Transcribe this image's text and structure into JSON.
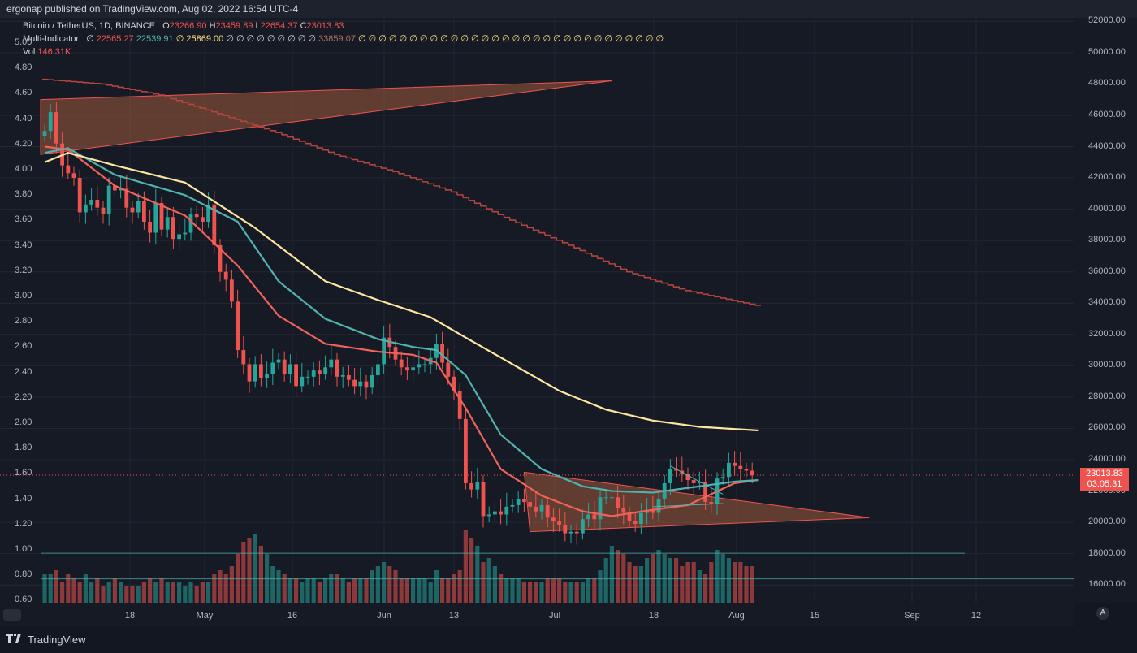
{
  "header": {
    "published_text": "ergonap published on TradingView.com, Aug 02, 2022 16:54 UTC-4"
  },
  "legend": {
    "symbol": "Bitcoin / TetherUS, 1D, BINANCE",
    "o_label": "O",
    "o_value": "23266.90",
    "h_label": "H",
    "h_value": "23459.89",
    "l_label": "L",
    "l_value": "22654.37",
    "c_label": "C",
    "c_value": "23013.83",
    "indicator_name": "Multi-Indicator",
    "null_mark": "∅",
    "ind_v1": "22565.27",
    "ind_v2": "22539.91",
    "ind_v3": "25869.00",
    "ind_v4": "33859.07",
    "null_tail": "∅ ∅ ∅ ∅ ∅ ∅ ∅ ∅ ∅ ∅ ∅ ∅ ∅ ∅ ∅ ∅ ∅ ∅ ∅ ∅ ∅ ∅ ∅ ∅ ∅ ∅ ∅ ∅ ∅ ∅",
    "vol_label": "Vol",
    "vol_value": "146.31K"
  },
  "price_box": {
    "price": "23013.83",
    "countdown": "03:05:31"
  },
  "footer": {
    "brand": "TradingView",
    "auto_button": "A"
  },
  "colors": {
    "background": "#161a25",
    "up": "#26a69a",
    "down": "#ef5350",
    "ema_teal": "#4fb3b0",
    "ema_red": "#f0635a",
    "sma_yellow": "#fde6a0",
    "sma_red_dark": "#b4443e"
  },
  "chart_data": {
    "type": "candlestick",
    "symbol": "Bitcoin / TetherUS",
    "timeframe": "1D",
    "exchange": "BINANCE",
    "right_axis_ticks": [
      "52000.00",
      "50000.00",
      "48000.00",
      "46000.00",
      "44000.00",
      "42000.00",
      "40000.00",
      "38000.00",
      "36000.00",
      "34000.00",
      "32000.00",
      "30000.00",
      "28000.00",
      "26000.00",
      "24000.00",
      "22000.00",
      "20000.00",
      "18000.00",
      "16000.00"
    ],
    "left_axis_ticks": [
      "5.00",
      "4.80",
      "4.60",
      "4.40",
      "4.20",
      "4.00",
      "3.80",
      "3.60",
      "3.40",
      "3.20",
      "3.00",
      "2.80",
      "2.60",
      "2.40",
      "2.20",
      "2.00",
      "1.80",
      "1.60",
      "1.40",
      "1.20",
      "1.00",
      "0.80",
      "0.60"
    ],
    "x_ticks": [
      "18",
      "May",
      "16",
      "Jun",
      "13",
      "Jul",
      "18",
      "Aug",
      "15",
      "Sep",
      "12"
    ],
    "ylim": [
      15000,
      53000
    ],
    "closes": [
      45000,
      46200,
      44200,
      42800,
      42300,
      42000,
      39800,
      40300,
      40600,
      40100,
      39700,
      41500,
      41200,
      41300,
      40100,
      39800,
      40500,
      39200,
      38500,
      40400,
      38700,
      39500,
      38100,
      38400,
      38500,
      39700,
      39500,
      39200,
      40300,
      37700,
      36000,
      35500,
      34100,
      31000,
      30100,
      29000,
      30100,
      29200,
      29500,
      30200,
      30400,
      29500,
      30100,
      28700,
      29300,
      29300,
      29700,
      29500,
      29900,
      30400,
      29300,
      29400,
      29100,
      28700,
      29000,
      28600,
      29400,
      30100,
      31800,
      31200,
      30400,
      29900,
      29700,
      29900,
      30100,
      30100,
      30500,
      31400,
      30200,
      29300,
      28400,
      26600,
      22500,
      22100,
      22600,
      20400,
      20500,
      20700,
      20500,
      21000,
      21100,
      21500,
      21300,
      21000,
      20700,
      21100,
      20300,
      20100,
      19800,
      19300,
      19400,
      19300,
      20200,
      20500,
      20200,
      21600,
      21600,
      21600,
      20900,
      20600,
      20100,
      19900,
      20600,
      20800,
      20600,
      21500,
      22500,
      23400,
      23300,
      23100,
      22700,
      22500,
      22600,
      21300,
      21200,
      22800,
      22900,
      23800,
      23600,
      23400,
      23300,
      23000
    ],
    "volumes": [
      0.07,
      0.07,
      0.08,
      0.05,
      0.07,
      0.06,
      0.05,
      0.07,
      0.05,
      0.06,
      0.04,
      0.05,
      0.06,
      0.05,
      0.04,
      0.04,
      0.04,
      0.05,
      0.06,
      0.05,
      0.06,
      0.05,
      0.05,
      0.05,
      0.04,
      0.05,
      0.04,
      0.05,
      0.05,
      0.07,
      0.08,
      0.07,
      0.09,
      0.12,
      0.15,
      0.16,
      0.17,
      0.14,
      0.12,
      0.09,
      0.08,
      0.07,
      0.06,
      0.06,
      0.05,
      0.06,
      0.06,
      0.05,
      0.06,
      0.07,
      0.07,
      0.06,
      0.05,
      0.06,
      0.06,
      0.06,
      0.08,
      0.09,
      0.1,
      0.09,
      0.08,
      0.06,
      0.06,
      0.06,
      0.06,
      0.06,
      0.05,
      0.08,
      0.06,
      0.06,
      0.07,
      0.08,
      0.18,
      0.16,
      0.14,
      0.1,
      0.11,
      0.09,
      0.07,
      0.06,
      0.06,
      0.06,
      0.05,
      0.05,
      0.05,
      0.05,
      0.06,
      0.06,
      0.06,
      0.05,
      0.05,
      0.05,
      0.05,
      0.06,
      0.06,
      0.08,
      0.11,
      0.14,
      0.13,
      0.12,
      0.1,
      0.09,
      0.09,
      0.11,
      0.12,
      0.13,
      0.12,
      0.11,
      0.11,
      0.09,
      0.1,
      0.1,
      0.08,
      0.07,
      0.1,
      0.13,
      0.12,
      0.11,
      0.1,
      0.1,
      0.09,
      0.09,
      0.08
    ],
    "ma_lines": [
      {
        "name": "EMA red",
        "color": "#f0635a",
        "points": [
          [
            0,
            44000
          ],
          [
            4,
            43800
          ],
          [
            12,
            41500
          ],
          [
            24,
            39600
          ],
          [
            33,
            36400
          ],
          [
            40,
            33200
          ],
          [
            48,
            31400
          ],
          [
            57,
            30900
          ],
          [
            63,
            30700
          ],
          [
            67,
            30200
          ],
          [
            72,
            27300
          ],
          [
            78,
            23400
          ],
          [
            85,
            21700
          ],
          [
            92,
            20700
          ],
          [
            97,
            20400
          ],
          [
            104,
            20800
          ],
          [
            110,
            21100
          ],
          [
            118,
            22500
          ],
          [
            122,
            22700
          ]
        ]
      },
      {
        "name": "EMA teal",
        "color": "#4fb3b0",
        "points": [
          [
            0,
            43600
          ],
          [
            4,
            43900
          ],
          [
            12,
            42200
          ],
          [
            24,
            40900
          ],
          [
            33,
            39200
          ],
          [
            40,
            35400
          ],
          [
            48,
            33000
          ],
          [
            57,
            31700
          ],
          [
            63,
            31200
          ],
          [
            67,
            31000
          ],
          [
            72,
            29400
          ],
          [
            78,
            25600
          ],
          [
            85,
            23400
          ],
          [
            92,
            22300
          ],
          [
            97,
            22000
          ],
          [
            104,
            21900
          ],
          [
            112,
            22300
          ],
          [
            118,
            22600
          ],
          [
            122,
            22700
          ]
        ]
      },
      {
        "name": "SMA yellow",
        "color": "#fde6a0",
        "points": [
          [
            0,
            43000
          ],
          [
            4,
            43600
          ],
          [
            12,
            42800
          ],
          [
            24,
            41700
          ],
          [
            36,
            38800
          ],
          [
            48,
            35400
          ],
          [
            57,
            34200
          ],
          [
            66,
            33100
          ],
          [
            72,
            31800
          ],
          [
            80,
            30100
          ],
          [
            88,
            28400
          ],
          [
            96,
            27200
          ],
          [
            104,
            26500
          ],
          [
            112,
            26100
          ],
          [
            122,
            25870
          ]
        ]
      },
      {
        "name": "SMA dark red",
        "color": "#b4443e",
        "points": [
          [
            0,
            48300
          ],
          [
            10,
            48000
          ],
          [
            20,
            47300
          ],
          [
            30,
            46100
          ],
          [
            40,
            44900
          ],
          [
            50,
            43500
          ],
          [
            60,
            42400
          ],
          [
            70,
            41100
          ],
          [
            80,
            39300
          ],
          [
            90,
            37700
          ],
          [
            100,
            36000
          ],
          [
            110,
            34800
          ],
          [
            122,
            33860
          ]
        ]
      }
    ],
    "triangles": [
      {
        "name": "upper pennant",
        "points": [
          [
            0,
            47000
          ],
          [
            97,
            48200
          ],
          [
            0,
            43500
          ]
        ]
      },
      {
        "name": "lower pennant",
        "points": [
          [
            82,
            23200
          ],
          [
            141,
            20300
          ],
          [
            83,
            19400
          ]
        ]
      }
    ],
    "horizontal_lines": [
      {
        "name": "price line",
        "value": 23013.83
      },
      {
        "name": "level 1.00",
        "value": 18030
      },
      {
        "name": "level 0.80",
        "value": 16390
      }
    ],
    "price_label": 23013.83
  }
}
